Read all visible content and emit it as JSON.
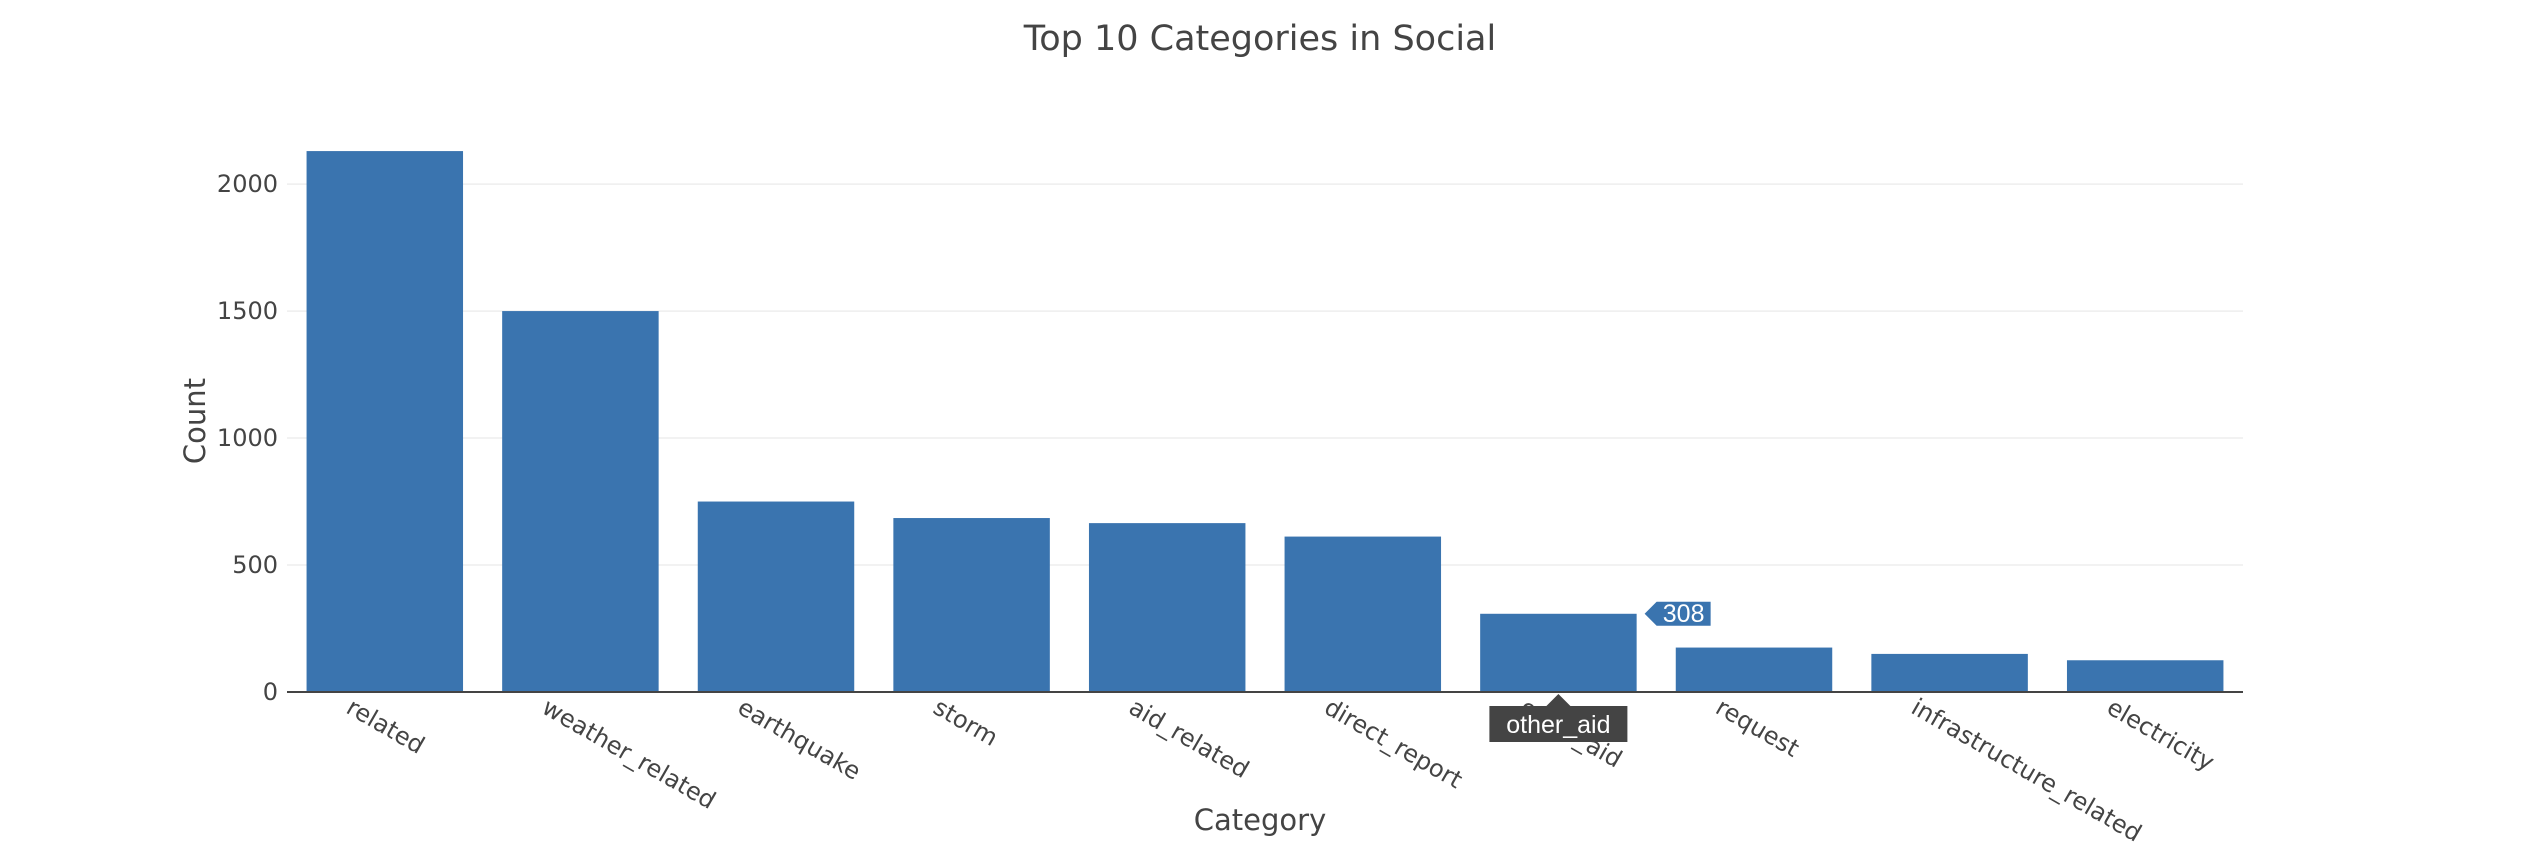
{
  "chart_data": {
    "type": "bar",
    "title": "Top 10 Categories in Social",
    "xlabel": "Category",
    "ylabel": "Count",
    "categories": [
      "related",
      "weather_related",
      "earthquake",
      "storm",
      "aid_related",
      "direct_report",
      "other_aid",
      "request",
      "infrastructure_related",
      "electricity"
    ],
    "values": [
      2130,
      1500,
      750,
      685,
      665,
      612,
      308,
      175,
      150,
      125
    ],
    "ylim": [
      0,
      2150
    ],
    "yticks": [
      0,
      500,
      1000,
      1500,
      2000
    ],
    "grid": true,
    "bar_color": "#3a74af"
  },
  "hover": {
    "index": 6,
    "category": "other_aid",
    "value": "308",
    "value_color": "#3a74af",
    "label_color": "#444444"
  }
}
